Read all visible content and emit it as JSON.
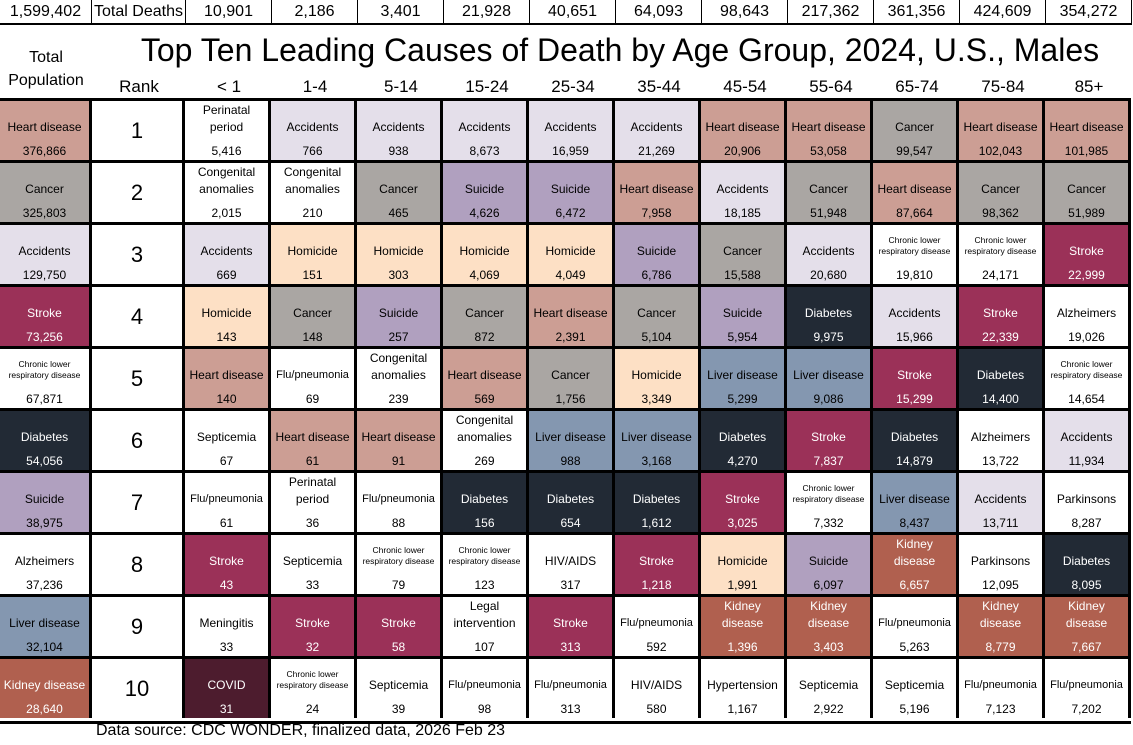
{
  "top": {
    "total_population": "1,599,402",
    "total_deaths_label": "Total Deaths",
    "deaths_by_age": [
      "10,901",
      "2,186",
      "3,401",
      "21,928",
      "40,651",
      "64,093",
      "98,643",
      "217,362",
      "361,356",
      "424,609",
      "354,272"
    ]
  },
  "title": "Top Ten Leading Causes of Death by Age Group, 2024, U.S., Males",
  "headers": {
    "total": "Total Population",
    "rank": "Rank",
    "ages": [
      "< 1",
      "1-4",
      "5-14",
      "15-24",
      "25-34",
      "35-44",
      "45-54",
      "55-64",
      "65-74",
      "75-84",
      "85+"
    ]
  },
  "colors": {
    "Heart disease": "#cc9e94",
    "Cancer": "#aaa6a3",
    "Accidents": "#e4dfea",
    "Stroke": "#9b3158",
    "Diabetes": "#222a35",
    "Suicide": "#b0a0bf",
    "Homicide": "#fde0c5",
    "Liver disease": "#8497b0",
    "Kidney disease": "#b0604f",
    "COVID": "#4d1c2e"
  },
  "chart_data": {
    "type": "table",
    "title": "Top Ten Leading Causes of Death by Age Group, 2024, U.S., Males",
    "columns": [
      "Total",
      "< 1",
      "1-4",
      "5-14",
      "15-24",
      "25-34",
      "35-44",
      "45-54",
      "55-64",
      "65-74",
      "75-84",
      "85+"
    ],
    "rows": [
      {
        "rank": "1",
        "cells": [
          [
            "Heart disease",
            "376,866"
          ],
          [
            "Perinatal period",
            "5,416"
          ],
          [
            "Accidents",
            "766"
          ],
          [
            "Accidents",
            "938"
          ],
          [
            "Accidents",
            "8,673"
          ],
          [
            "Accidents",
            "16,959"
          ],
          [
            "Accidents",
            "21,269"
          ],
          [
            "Heart disease",
            "20,906"
          ],
          [
            "Heart disease",
            "53,058"
          ],
          [
            "Cancer",
            "99,547"
          ],
          [
            "Heart disease",
            "102,043"
          ],
          [
            "Heart disease",
            "101,985"
          ]
        ]
      },
      {
        "rank": "2",
        "cells": [
          [
            "Cancer",
            "325,803"
          ],
          [
            "Congenital anomalies",
            "2,015"
          ],
          [
            "Congenital anomalies",
            "210"
          ],
          [
            "Cancer",
            "465"
          ],
          [
            "Suicide",
            "4,626"
          ],
          [
            "Suicide",
            "6,472"
          ],
          [
            "Heart disease",
            "7,958"
          ],
          [
            "Accidents",
            "18,185"
          ],
          [
            "Cancer",
            "51,948"
          ],
          [
            "Heart disease",
            "87,664"
          ],
          [
            "Cancer",
            "98,362"
          ],
          [
            "Cancer",
            "51,989"
          ]
        ]
      },
      {
        "rank": "3",
        "cells": [
          [
            "Accidents",
            "129,750"
          ],
          [
            "Accidents",
            "669"
          ],
          [
            "Homicide",
            "151"
          ],
          [
            "Homicide",
            "303"
          ],
          [
            "Homicide",
            "4,069"
          ],
          [
            "Homicide",
            "4,049"
          ],
          [
            "Suicide",
            "6,786"
          ],
          [
            "Cancer",
            "15,588"
          ],
          [
            "Accidents",
            "20,680"
          ],
          [
            "Chronic lower respiratory disease",
            "19,810"
          ],
          [
            "Chronic lower respiratory disease",
            "24,171"
          ],
          [
            "Stroke",
            "22,999"
          ]
        ]
      },
      {
        "rank": "4",
        "cells": [
          [
            "Stroke",
            "73,256"
          ],
          [
            "Homicide",
            "143"
          ],
          [
            "Cancer",
            "148"
          ],
          [
            "Suicide",
            "257"
          ],
          [
            "Cancer",
            "872"
          ],
          [
            "Heart disease",
            "2,391"
          ],
          [
            "Cancer",
            "5,104"
          ],
          [
            "Suicide",
            "5,954"
          ],
          [
            "Diabetes",
            "9,975"
          ],
          [
            "Accidents",
            "15,966"
          ],
          [
            "Stroke",
            "22,339"
          ],
          [
            "Alzheimers",
            "19,026"
          ]
        ]
      },
      {
        "rank": "5",
        "cells": [
          [
            "Chronic lower respiratory disease",
            "67,871"
          ],
          [
            "Heart disease",
            "140"
          ],
          [
            "Flu/pneumonia",
            "69"
          ],
          [
            "Congenital anomalies",
            "239"
          ],
          [
            "Heart disease",
            "569"
          ],
          [
            "Cancer",
            "1,756"
          ],
          [
            "Homicide",
            "3,349"
          ],
          [
            "Liver disease",
            "5,299"
          ],
          [
            "Liver disease",
            "9,086"
          ],
          [
            "Stroke",
            "15,299"
          ],
          [
            "Diabetes",
            "14,400"
          ],
          [
            "Chronic lower respiratory disease",
            "14,654"
          ]
        ]
      },
      {
        "rank": "6",
        "cells": [
          [
            "Diabetes",
            "54,056"
          ],
          [
            "Septicemia",
            "67"
          ],
          [
            "Heart disease",
            "61"
          ],
          [
            "Heart disease",
            "91"
          ],
          [
            "Congenital anomalies",
            "269"
          ],
          [
            "Liver disease",
            "988"
          ],
          [
            "Liver disease",
            "3,168"
          ],
          [
            "Diabetes",
            "4,270"
          ],
          [
            "Stroke",
            "7,837"
          ],
          [
            "Diabetes",
            "14,879"
          ],
          [
            "Alzheimers",
            "13,722"
          ],
          [
            "Accidents",
            "11,934"
          ]
        ]
      },
      {
        "rank": "7",
        "cells": [
          [
            "Suicide",
            "38,975"
          ],
          [
            "Flu/pneumonia",
            "61"
          ],
          [
            "Perinatal period",
            "36"
          ],
          [
            "Flu/pneumonia",
            "88"
          ],
          [
            "Diabetes",
            "156"
          ],
          [
            "Diabetes",
            "654"
          ],
          [
            "Diabetes",
            "1,612"
          ],
          [
            "Stroke",
            "3,025"
          ],
          [
            "Chronic lower respiratory disease",
            "7,332"
          ],
          [
            "Liver disease",
            "8,437"
          ],
          [
            "Accidents",
            "13,711"
          ],
          [
            "Parkinsons",
            "8,287"
          ]
        ]
      },
      {
        "rank": "8",
        "cells": [
          [
            "Alzheimers",
            "37,236"
          ],
          [
            "Stroke",
            "43"
          ],
          [
            "Septicemia",
            "33"
          ],
          [
            "Chronic lower respiratory disease",
            "79"
          ],
          [
            "Chronic lower respiratory disease",
            "123"
          ],
          [
            "HIV/AIDS",
            "317"
          ],
          [
            "Stroke",
            "1,218"
          ],
          [
            "Homicide",
            "1,991"
          ],
          [
            "Suicide",
            "6,097"
          ],
          [
            "Kidney disease",
            "6,657"
          ],
          [
            "Parkinsons",
            "12,095"
          ],
          [
            "Diabetes",
            "8,095"
          ]
        ]
      },
      {
        "rank": "9",
        "cells": [
          [
            "Liver disease",
            "32,104"
          ],
          [
            "Meningitis",
            "33"
          ],
          [
            "Stroke",
            "32"
          ],
          [
            "Stroke",
            "58"
          ],
          [
            "Legal intervention",
            "107"
          ],
          [
            "Stroke",
            "313"
          ],
          [
            "Flu/pneumonia",
            "592"
          ],
          [
            "Kidney disease",
            "1,396"
          ],
          [
            "Kidney disease",
            "3,403"
          ],
          [
            "Flu/pneumonia",
            "5,263"
          ],
          [
            "Kidney disease",
            "8,779"
          ],
          [
            "Kidney disease",
            "7,667"
          ]
        ]
      },
      {
        "rank": "10",
        "cells": [
          [
            "Kidney disease",
            "28,640"
          ],
          [
            "COVID",
            "31"
          ],
          [
            "Chronic lower respiratory disease",
            "24"
          ],
          [
            "Septicemia",
            "39"
          ],
          [
            "Flu/pneumonia",
            "98"
          ],
          [
            "Flu/pneumonia",
            "313"
          ],
          [
            "HIV/AIDS",
            "580"
          ],
          [
            "Hypertension",
            "1,167"
          ],
          [
            "Septicemia",
            "2,922"
          ],
          [
            "Septicemia",
            "5,196"
          ],
          [
            "Flu/pneumonia",
            "7,123"
          ],
          [
            "Flu/pneumonia",
            "7,202"
          ]
        ]
      }
    ]
  },
  "footer": "Data source: CDC WONDER, finalized data, 2026 Feb 23"
}
